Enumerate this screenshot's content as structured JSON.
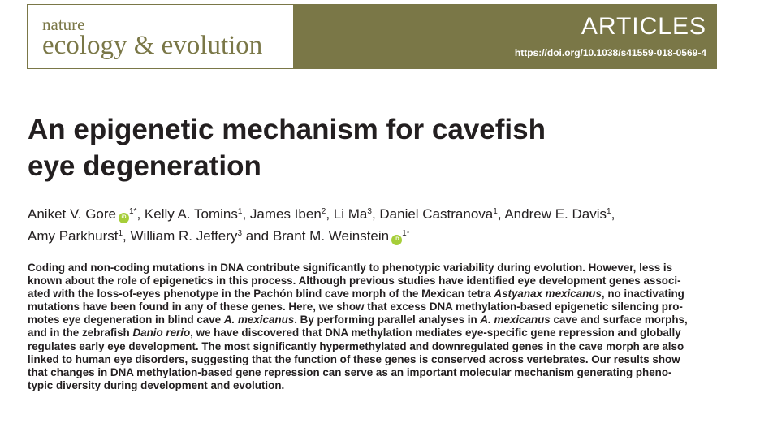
{
  "header": {
    "journal_line1": "nature",
    "journal_line2": "ecology & evolution",
    "section": "ARTICLES",
    "doi": "https://doi.org/10.1038/s41559-018-0569-4",
    "band_color": "#7a7747"
  },
  "title": {
    "line1": "An epigenetic mechanism for cavefish",
    "line2": "eye degeneration"
  },
  "authors": [
    {
      "name": "Aniket V. Gore",
      "orcid": true,
      "affil": "1*"
    },
    {
      "name": "Kelly A. Tomins",
      "affil": "1"
    },
    {
      "name": "James Iben",
      "affil": "2"
    },
    {
      "name": "Li Ma",
      "affil": "3"
    },
    {
      "name": "Daniel Castranova",
      "affil": "1"
    },
    {
      "name": "Andrew E. Davis",
      "affil": "1"
    },
    {
      "name": "Amy Parkhurst",
      "affil": "1"
    },
    {
      "name": "William R. Jeffery",
      "affil": "3"
    },
    {
      "name": "Brant M. Weinstein",
      "orcid": true,
      "affil": "1*"
    }
  ],
  "orcid_icon": "orcid-icon",
  "abstract": {
    "l1": "Coding and non-coding mutations in DNA contribute significantly to phenotypic variability during evolution. However, less is",
    "l2": "known about the role of epigenetics in this process. Although previous studies have identified eye development genes associ-",
    "l3a": "ated with the loss-of-eyes phenotype in the Pachón blind cave morph of the Mexican tetra ",
    "l3i": "Astyanax mexicanus",
    "l3b": ", no inactivating",
    "l4": "mutations have been found in any of these genes. Here, we show that excess DNA methylation-based epigenetic silencing pro-",
    "l5a": "motes eye degeneration in blind cave ",
    "l5i": "A. mexicanus",
    "l5b": ". By performing parallel analyses in ",
    "l5i2": "A. mexicanus",
    "l5c": " cave and surface morphs,",
    "l6a": "and in the zebrafish ",
    "l6i": "Danio rerio",
    "l6b": ", we have discovered that DNA methylation mediates eye-specific gene repression and globally",
    "l7": "regulates early eye development. The most significantly hypermethylated and downregulated genes in the cave morph are also",
    "l8": "linked to human eye disorders, suggesting that the function of these genes is conserved across vertebrates. Our results show",
    "l9": "that changes in DNA methylation-based gene repression can serve as an important molecular mechanism generating pheno-",
    "l10": "typic diversity during development and evolution."
  }
}
